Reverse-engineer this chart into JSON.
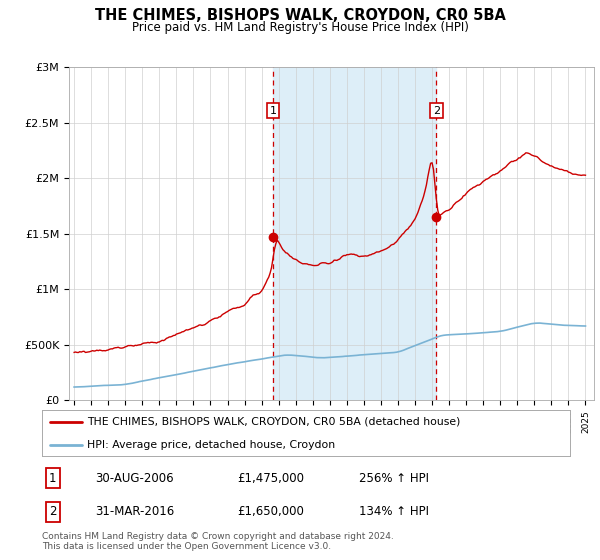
{
  "title": "THE CHIMES, BISHOPS WALK, CROYDON, CR0 5BA",
  "subtitle": "Price paid vs. HM Land Registry's House Price Index (HPI)",
  "legend_line1": "THE CHIMES, BISHOPS WALK, CROYDON, CR0 5BA (detached house)",
  "legend_line2": "HPI: Average price, detached house, Croydon",
  "transaction1_date": "30-AUG-2006",
  "transaction1_price": "£1,475,000",
  "transaction1_hpi": "256% ↑ HPI",
  "transaction2_date": "31-MAR-2016",
  "transaction2_price": "£1,650,000",
  "transaction2_hpi": "134% ↑ HPI",
  "vline1_x": 2006.67,
  "vline2_x": 2016.25,
  "point1_x": 2006.67,
  "point1_y": 1475000,
  "point2_x": 2016.25,
  "point2_y": 1650000,
  "hpi_color": "#7ab3d4",
  "price_color": "#cc0000",
  "vline_color": "#cc0000",
  "span_color": "#ddeef8",
  "footer": "Contains HM Land Registry data © Crown copyright and database right 2024.\nThis data is licensed under the Open Government Licence v3.0.",
  "ylim": [
    0,
    3000000
  ],
  "xlim_start": 1994.7,
  "xlim_end": 2025.5,
  "background_color": "#ffffff",
  "yticks": [
    0,
    500000,
    1000000,
    1500000,
    2000000,
    2500000,
    3000000
  ],
  "ytick_labels": [
    "£0",
    "£500K",
    "£1M",
    "£1.5M",
    "£2M",
    "£2.5M",
    "£3M"
  ]
}
